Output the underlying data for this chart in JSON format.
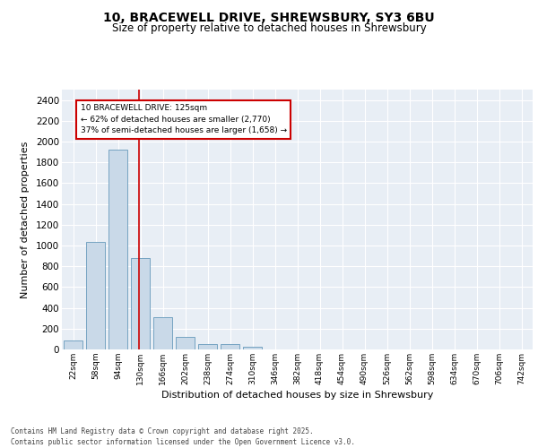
{
  "title_line1": "10, BRACEWELL DRIVE, SHREWSBURY, SY3 6BU",
  "title_line2": "Size of property relative to detached houses in Shrewsbury",
  "xlabel": "Distribution of detached houses by size in Shrewsbury",
  "ylabel": "Number of detached properties",
  "categories": [
    "22sqm",
    "58sqm",
    "94sqm",
    "130sqm",
    "166sqm",
    "202sqm",
    "238sqm",
    "274sqm",
    "310sqm",
    "346sqm",
    "382sqm",
    "418sqm",
    "454sqm",
    "490sqm",
    "526sqm",
    "562sqm",
    "598sqm",
    "634sqm",
    "670sqm",
    "706sqm",
    "742sqm"
  ],
  "bar_values": [
    90,
    1035,
    1920,
    880,
    310,
    120,
    55,
    48,
    25,
    0,
    0,
    0,
    0,
    0,
    0,
    0,
    0,
    0,
    0,
    0,
    0
  ],
  "bar_color": "#c9d9e8",
  "bar_edge_color": "#6699bb",
  "red_line_color": "#cc0000",
  "annotation_text": "10 BRACEWELL DRIVE: 125sqm\n← 62% of detached houses are smaller (2,770)\n37% of semi-detached houses are larger (1,658) →",
  "annotation_box_color": "#cc0000",
  "ylim": [
    0,
    2500
  ],
  "yticks": [
    0,
    200,
    400,
    600,
    800,
    1000,
    1200,
    1400,
    1600,
    1800,
    2000,
    2200,
    2400
  ],
  "background_color": "#e8eef5",
  "grid_color": "#ffffff",
  "footer_line1": "Contains HM Land Registry data © Crown copyright and database right 2025.",
  "footer_line2": "Contains public sector information licensed under the Open Government Licence v3.0."
}
